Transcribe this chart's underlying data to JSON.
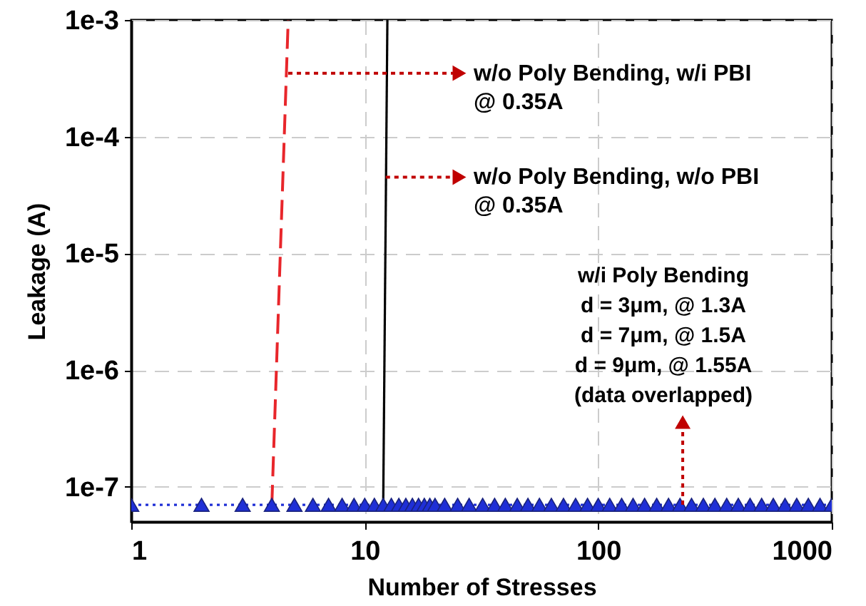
{
  "chart_data": {
    "type": "line",
    "xlabel": "Number of Stresses",
    "ylabel": "Leakage (A)",
    "log": "xy",
    "grid": true,
    "xlim": [
      1,
      1000
    ],
    "xticks": [
      1,
      10,
      100,
      1000
    ],
    "ylim": [
      5e-08,
      0.001
    ],
    "yticks": [
      {
        "value": 1e-07,
        "label": "1e-7"
      },
      {
        "value": 1e-06,
        "label": "1e-6"
      },
      {
        "value": 1e-05,
        "label": "1e-5"
      },
      {
        "value": 0.0001,
        "label": "1e-4"
      },
      {
        "value": 0.001,
        "label": "1e-3"
      }
    ],
    "series": [
      {
        "color": "#e8262b",
        "line_style": "dashed",
        "marker": "none",
        "x": [
          4,
          4.7
        ],
        "values": [
          7e-08,
          0.001
        ]
      },
      {
        "color": "#000000",
        "line_style": "solid",
        "marker": "none",
        "x": [
          12,
          12.5
        ],
        "values": [
          7.5e-08,
          0.001
        ]
      },
      {
        "color": "#1f2fd6",
        "line_style": "dotted",
        "marker": "triangle",
        "x": [
          1,
          2,
          3,
          4,
          5,
          6,
          7,
          8,
          9,
          10,
          11,
          12,
          13,
          14,
          15,
          16,
          17,
          18,
          19,
          20,
          22,
          25,
          28,
          32,
          36,
          40,
          45,
          50,
          56,
          63,
          71,
          80,
          90,
          100,
          112,
          126,
          141,
          158,
          178,
          200,
          224,
          251,
          282,
          316,
          355,
          398,
          447,
          501,
          562,
          631,
          708,
          794,
          891,
          1000
        ],
        "values": [
          7e-08,
          7e-08,
          7e-08,
          7e-08,
          7e-08,
          7e-08,
          7e-08,
          7e-08,
          7e-08,
          7e-08,
          7e-08,
          7e-08,
          7e-08,
          7e-08,
          7e-08,
          7e-08,
          7e-08,
          7e-08,
          7e-08,
          7e-08,
          7e-08,
          7e-08,
          7e-08,
          7e-08,
          7e-08,
          7e-08,
          7e-08,
          7e-08,
          7e-08,
          7e-08,
          7e-08,
          7e-08,
          7e-08,
          7e-08,
          7e-08,
          7e-08,
          7e-08,
          7e-08,
          7e-08,
          7e-08,
          7e-08,
          7e-08,
          7e-08,
          7e-08,
          7e-08,
          7e-08,
          7e-08,
          7e-08,
          7e-08,
          7e-08,
          7e-08,
          7e-08,
          7e-08,
          7e-08
        ]
      }
    ],
    "annotations": [
      {
        "text": "w/o Poly Bending, w/i PBI\n@ 0.35A",
        "x": 4.7,
        "y": 0.00035
      },
      {
        "text": "w/o Poly Bending, w/o PBI\n@ 0.35A",
        "x": 12.3,
        "y": 4.5e-05
      },
      {
        "text": "w/i Poly Bending\nd = 3μm, @ 1.3A\nd = 7μm, @ 1.5A\nd = 9μm, @ 1.55A\n(data overlapped)",
        "x": 230,
        "y": 7e-08
      }
    ]
  }
}
